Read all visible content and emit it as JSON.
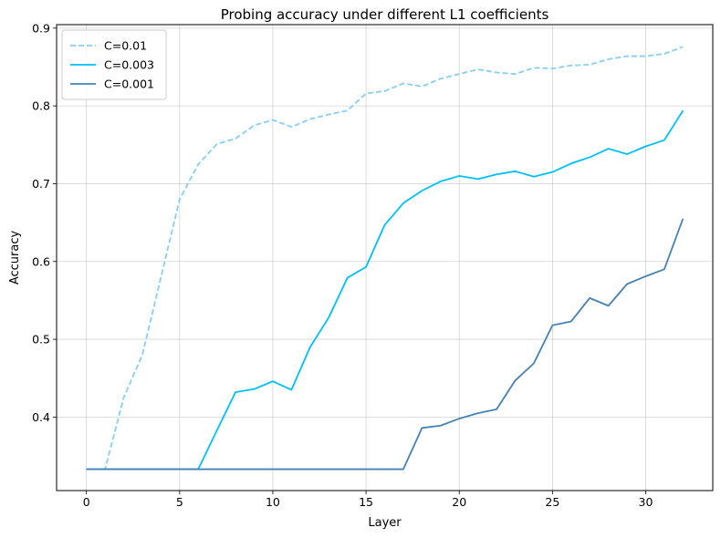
{
  "chart_data": {
    "type": "line",
    "title": "Probing accuracy under different L1 coefficients",
    "xlabel": "Layer",
    "ylabel": "Accuracy",
    "xlim": [
      -1.6,
      33.6
    ],
    "ylim": [
      0.3055,
      0.9045
    ],
    "xticks": [
      0,
      5,
      10,
      15,
      20,
      25,
      30
    ],
    "yticks": [
      0.4,
      0.5,
      0.6,
      0.7,
      0.8,
      0.9
    ],
    "grid": true,
    "legend_position": "top-left",
    "x": [
      0,
      1,
      2,
      3,
      4,
      5,
      6,
      7,
      8,
      9,
      10,
      11,
      12,
      13,
      14,
      15,
      16,
      17,
      18,
      19,
      20,
      21,
      22,
      23,
      24,
      25,
      26,
      27,
      28,
      29,
      30,
      31,
      32
    ],
    "series": [
      {
        "name": "C=0.01",
        "color": "#87cefa",
        "dash": "dashed",
        "values": [
          0.333,
          0.333,
          0.425,
          0.48,
          0.58,
          0.68,
          0.725,
          0.751,
          0.758,
          0.775,
          0.782,
          0.773,
          0.783,
          0.789,
          0.794,
          0.816,
          0.819,
          0.829,
          0.825,
          0.835,
          0.841,
          0.847,
          0.843,
          0.841,
          0.849,
          0.848,
          0.852,
          0.853,
          0.86,
          0.864,
          0.864,
          0.867,
          0.876
        ]
      },
      {
        "name": "C=0.003",
        "color": "#00bfff",
        "dash": "solid",
        "values": [
          0.333,
          0.333,
          0.333,
          0.333,
          0.333,
          0.333,
          0.333,
          0.383,
          0.432,
          0.436,
          0.446,
          0.435,
          0.49,
          0.528,
          0.579,
          0.593,
          0.647,
          0.675,
          0.691,
          0.703,
          0.71,
          0.706,
          0.712,
          0.716,
          0.709,
          0.715,
          0.726,
          0.734,
          0.745,
          0.738,
          0.748,
          0.756,
          0.794
        ]
      },
      {
        "name": "C=0.001",
        "color": "#4682b4",
        "dash": "solid",
        "values": [
          0.333,
          0.333,
          0.333,
          0.333,
          0.333,
          0.333,
          0.333,
          0.333,
          0.333,
          0.333,
          0.333,
          0.333,
          0.333,
          0.333,
          0.333,
          0.333,
          0.333,
          0.333,
          0.386,
          0.389,
          0.398,
          0.405,
          0.41,
          0.447,
          0.469,
          0.518,
          0.523,
          0.553,
          0.543,
          0.571,
          0.581,
          0.59,
          0.655
        ]
      }
    ]
  }
}
